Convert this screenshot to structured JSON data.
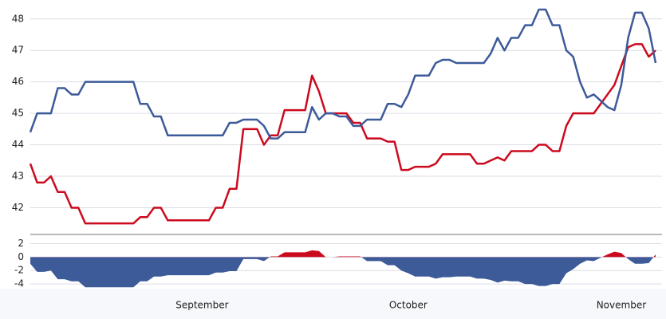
{
  "chart_data": {
    "type": "line",
    "categories": [
      null,
      null,
      null,
      null,
      null,
      null,
      null,
      null,
      null,
      null,
      null,
      null,
      null,
      null,
      null,
      null,
      null,
      null,
      null,
      null,
      null,
      null,
      null,
      null,
      null,
      "September",
      null,
      null,
      null,
      null,
      null,
      null,
      null,
      null,
      null,
      null,
      null,
      null,
      null,
      null,
      null,
      null,
      null,
      null,
      null,
      null,
      null,
      null,
      null,
      null,
      null,
      null,
      null,
      null,
      null,
      "October",
      null,
      null,
      null,
      null,
      null,
      null,
      null,
      null,
      null,
      null,
      null,
      null,
      null,
      null,
      null,
      null,
      null,
      null,
      null,
      null,
      null,
      null,
      null,
      null,
      null,
      null,
      null,
      null,
      null,
      null,
      "November",
      null,
      null,
      null,
      null,
      null
    ],
    "series": [
      {
        "name": "Red",
        "color": "#cc0a1e",
        "values": [
          43.4,
          42.8,
          42.8,
          43.0,
          42.5,
          42.5,
          42.0,
          42.0,
          41.5,
          41.5,
          41.5,
          41.5,
          41.5,
          41.5,
          41.5,
          41.5,
          41.7,
          41.7,
          42.0,
          42.0,
          41.6,
          41.6,
          41.6,
          41.6,
          41.6,
          41.6,
          41.6,
          42.0,
          42.0,
          42.6,
          42.6,
          44.5,
          44.5,
          44.5,
          44.0,
          44.3,
          44.3,
          45.1,
          45.1,
          45.1,
          45.1,
          46.2,
          45.7,
          45.0,
          45.0,
          45.0,
          45.0,
          44.7,
          44.7,
          44.2,
          44.2,
          44.2,
          44.1,
          44.1,
          43.2,
          43.2,
          43.3,
          43.3,
          43.3,
          43.4,
          43.7,
          43.7,
          43.7,
          43.7,
          43.7,
          43.4,
          43.4,
          43.5,
          43.6,
          43.5,
          43.8,
          43.8,
          43.8,
          43.8,
          44.0,
          44.0,
          43.8,
          43.8,
          44.6,
          45.0,
          45.0,
          45.0,
          45.0,
          45.3,
          45.6,
          45.9,
          46.5,
          47.1,
          47.2,
          47.2,
          46.8,
          47.0
        ]
      },
      {
        "name": "Blue",
        "color": "#3d5a99",
        "values": [
          44.4,
          45.0,
          45.0,
          45.0,
          45.8,
          45.8,
          45.6,
          45.6,
          46.0,
          46.0,
          46.0,
          46.0,
          46.0,
          46.0,
          46.0,
          46.0,
          45.3,
          45.3,
          44.9,
          44.9,
          44.3,
          44.3,
          44.3,
          44.3,
          44.3,
          44.3,
          44.3,
          44.3,
          44.3,
          44.7,
          44.7,
          44.8,
          44.8,
          44.8,
          44.6,
          44.2,
          44.2,
          44.4,
          44.4,
          44.4,
          44.4,
          45.2,
          44.8,
          45.0,
          45.0,
          44.9,
          44.9,
          44.6,
          44.6,
          44.8,
          44.8,
          44.8,
          45.3,
          45.3,
          45.2,
          45.6,
          46.2,
          46.2,
          46.2,
          46.6,
          46.7,
          46.7,
          46.6,
          46.6,
          46.6,
          46.6,
          46.6,
          46.9,
          47.4,
          47.0,
          47.4,
          47.4,
          47.8,
          47.8,
          48.3,
          48.3,
          47.8,
          47.8,
          47.0,
          46.8,
          46.0,
          45.5,
          45.6,
          45.4,
          45.2,
          45.1,
          45.9,
          47.4,
          48.2,
          48.2,
          47.7,
          46.6
        ]
      }
    ],
    "ylim": [
      41.2,
      48.4
    ],
    "yticks": [
      42,
      43,
      44,
      45,
      46,
      47,
      48
    ],
    "grid": true,
    "difference": {
      "positive_color": "#cc0a1e",
      "negative_color": "#3d5a99",
      "values": [
        -1.0,
        -2.2,
        -2.2,
        -2.0,
        -3.3,
        -3.3,
        -3.6,
        -3.6,
        -4.5,
        -4.5,
        -4.5,
        -4.5,
        -4.5,
        -4.5,
        -4.5,
        -4.5,
        -3.6,
        -3.6,
        -2.9,
        -2.9,
        -2.7,
        -2.7,
        -2.7,
        -2.7,
        -2.7,
        -2.7,
        -2.7,
        -2.3,
        -2.3,
        -2.1,
        -2.1,
        -0.3,
        -0.3,
        -0.3,
        -0.6,
        0.1,
        0.1,
        0.7,
        0.7,
        0.7,
        0.7,
        1.0,
        0.9,
        0.0,
        0.0,
        0.1,
        0.1,
        0.1,
        0.1,
        -0.6,
        -0.6,
        -0.6,
        -1.2,
        -1.2,
        -2.0,
        -2.4,
        -2.9,
        -2.9,
        -2.9,
        -3.2,
        -3.0,
        -3.0,
        -2.9,
        -2.9,
        -2.9,
        -3.2,
        -3.2,
        -3.4,
        -3.8,
        -3.5,
        -3.6,
        -3.6,
        -4.0,
        -4.0,
        -4.3,
        -4.3,
        -4.0,
        -4.0,
        -2.4,
        -1.8,
        -1.0,
        -0.5,
        -0.6,
        -0.1,
        0.4,
        0.8,
        0.6,
        -0.3,
        -1.0,
        -1.0,
        -0.9,
        0.4
      ],
      "ylim": [
        -4.7,
        3
      ],
      "yticks": [
        -4,
        -2,
        0,
        2
      ]
    }
  }
}
